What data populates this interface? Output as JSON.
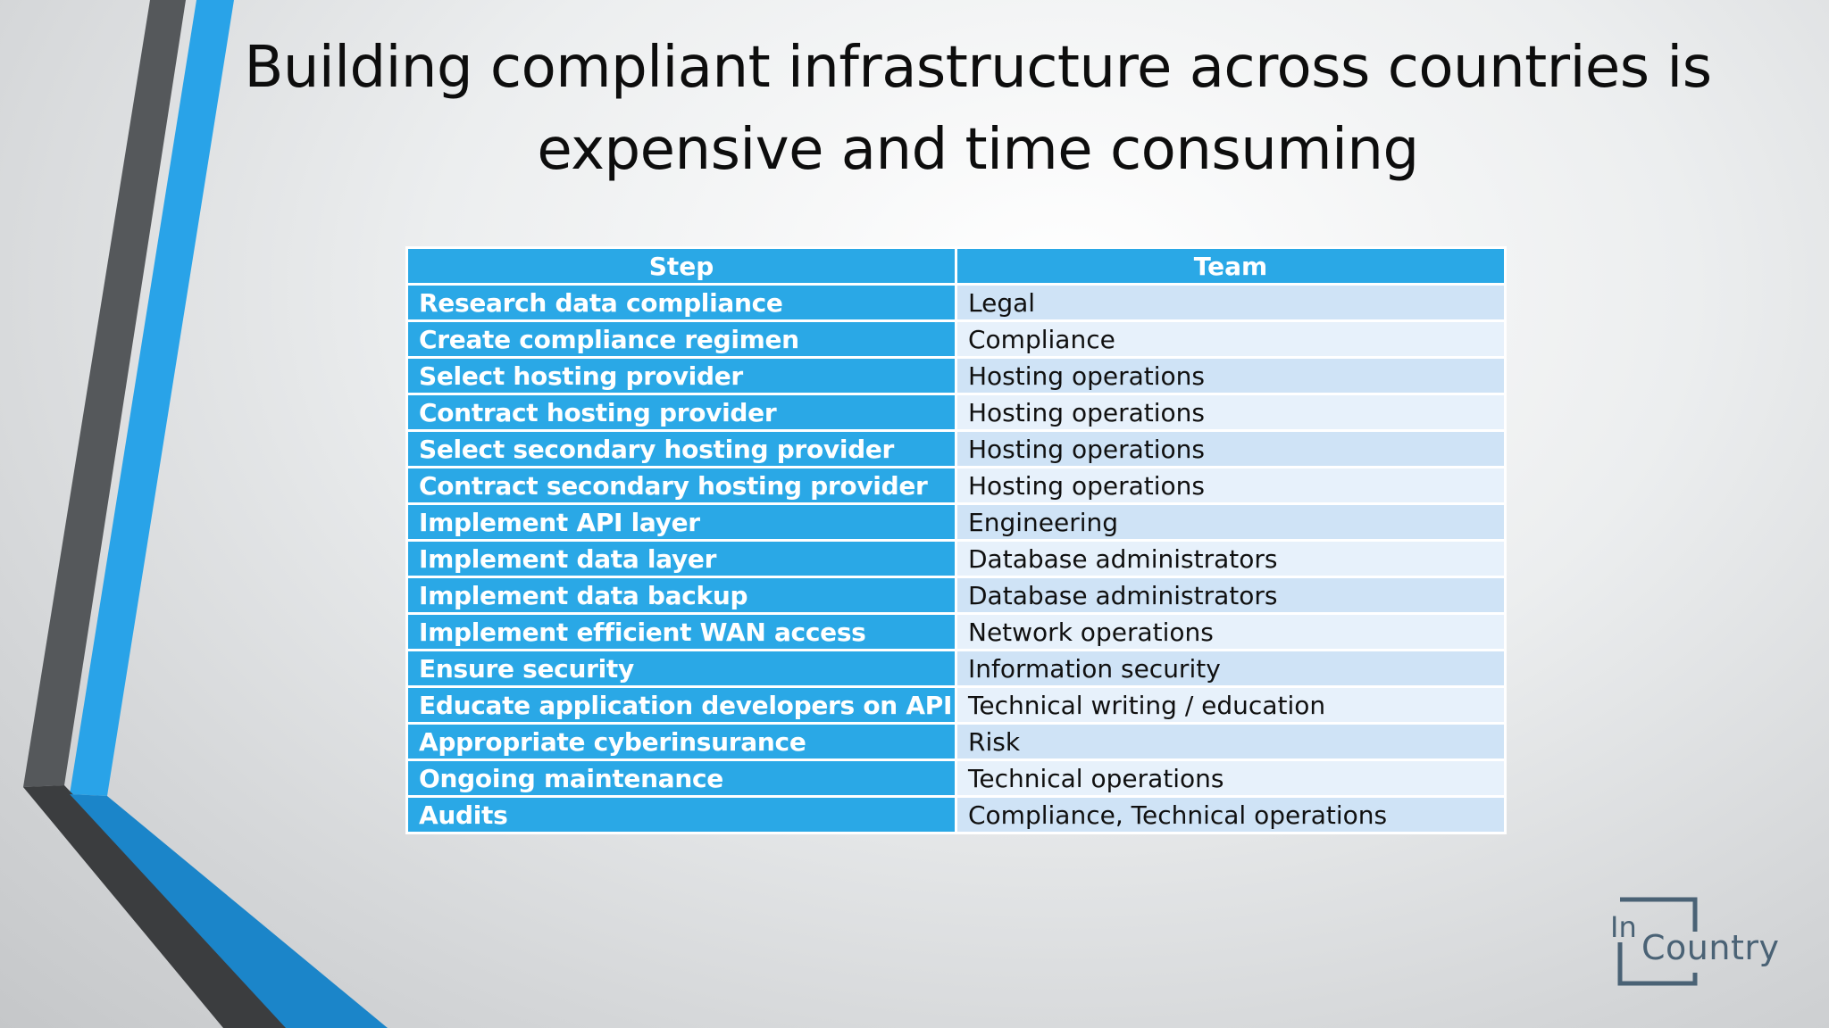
{
  "slide": {
    "title": "Building compliant infrastructure across countries is expensive and time consuming"
  },
  "table": {
    "headers": [
      "Step",
      "Team"
    ],
    "rows": [
      {
        "step": "Research data compliance",
        "team": "Legal"
      },
      {
        "step": "Create compliance regimen",
        "team": "Compliance"
      },
      {
        "step": "Select hosting provider",
        "team": "Hosting operations"
      },
      {
        "step": "Contract hosting provider",
        "team": "Hosting operations"
      },
      {
        "step": "Select secondary hosting provider",
        "team": "Hosting operations"
      },
      {
        "step": "Contract secondary hosting provider",
        "team": "Hosting operations"
      },
      {
        "step": "Implement API layer",
        "team": "Engineering"
      },
      {
        "step": "Implement data layer",
        "team": "Database administrators"
      },
      {
        "step": "Implement data backup",
        "team": "Database administrators"
      },
      {
        "step": "Implement efficient WAN access",
        "team": "Network operations"
      },
      {
        "step": "Ensure security",
        "team": "Information security"
      },
      {
        "step": "Educate application developers on API",
        "team": "Technical writing / education"
      },
      {
        "step": "Appropriate cyberinsurance",
        "team": "Risk"
      },
      {
        "step": "Ongoing maintenance",
        "team": "Technical operations"
      },
      {
        "step": "Audits",
        "team": "Compliance, Technical operations"
      }
    ]
  },
  "logo": {
    "prefix": "In",
    "name": "Country",
    "color": "#4a6275"
  },
  "colors": {
    "accent_blue": "#2aa8e6",
    "decor_dark": "#4a4c4e",
    "decor_blue": "#1f8fd6",
    "row_light_a": "#cfe3f6",
    "row_light_b": "#e7f1fb"
  }
}
